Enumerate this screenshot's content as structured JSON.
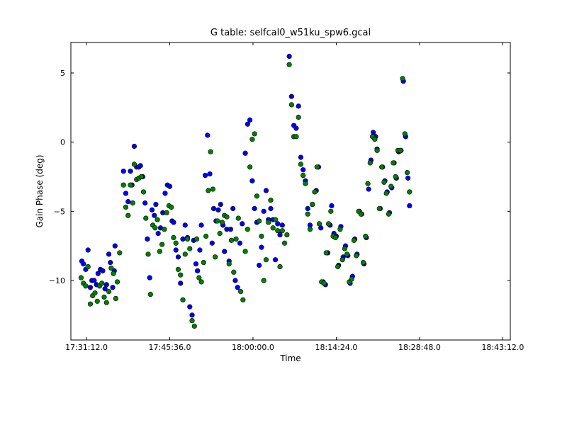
{
  "chart_data": {
    "type": "scatter",
    "title": "G table: selfcal0_w51ku_spw6.gcal",
    "xlabel": "Time",
    "ylabel": "Gain Phase (deg)",
    "xlim": [
      "17:28:30",
      "18:44:30"
    ],
    "ylim": [
      -14.3,
      7.2
    ],
    "x_ticks": [
      "17:31:12.0",
      "17:45:36.0",
      "18:00:00.0",
      "18:14:24.0",
      "18:28:48.0",
      "18:43:12.0"
    ],
    "y_ticks": [
      5,
      0,
      -5,
      -10
    ],
    "grid": false,
    "series": [
      {
        "color": "#0000ff",
        "points": [
          [
            "17:30:24",
            -8.6
          ],
          [
            "17:30:40",
            -8.8
          ],
          [
            "17:31:04",
            -9.2
          ],
          [
            "17:31:28",
            -7.8
          ],
          [
            "17:31:52",
            -10.5
          ],
          [
            "17:32:08",
            -10.0
          ],
          [
            "17:32:32",
            -10.0
          ],
          [
            "17:32:56",
            -10.3
          ],
          [
            "17:33:12",
            -9.5
          ],
          [
            "17:33:36",
            -9.2
          ],
          [
            "17:34:00",
            -9.3
          ],
          [
            "17:34:24",
            -10.6
          ],
          [
            "17:34:40",
            -10.3
          ],
          [
            "17:35:04",
            -8.1
          ],
          [
            "17:35:20",
            -8.7
          ],
          [
            "17:35:44",
            -10.5
          ],
          [
            "17:36:00",
            -9.3
          ],
          [
            "17:36:08",
            -7.5
          ],
          [
            "17:37:36",
            -2.1
          ],
          [
            "17:38:00",
            -3.7
          ],
          [
            "17:38:24",
            -4.3
          ],
          [
            "17:38:48",
            -2.1
          ],
          [
            "17:39:04",
            -3.1
          ],
          [
            "17:39:28",
            -0.3
          ],
          [
            "17:39:52",
            -1.8
          ],
          [
            "17:40:16",
            -1.8
          ],
          [
            "17:40:32",
            -1.7
          ],
          [
            "17:40:56",
            -2.5
          ],
          [
            "17:41:20",
            -4.4
          ],
          [
            "17:41:44",
            -7.0
          ],
          [
            "17:42:08",
            -9.8
          ],
          [
            "17:42:32",
            -4.9
          ],
          [
            "17:42:56",
            -5.3
          ],
          [
            "17:43:12",
            -4.5
          ],
          [
            "17:43:36",
            -6.6
          ],
          [
            "17:44:00",
            -6.2
          ],
          [
            "17:44:24",
            -5.1
          ],
          [
            "17:44:48",
            -3.7
          ],
          [
            "17:45:12",
            -3.1
          ],
          [
            "17:45:36",
            -3.2
          ],
          [
            "17:46:00",
            -5.7
          ],
          [
            "17:46:16",
            -5.8
          ],
          [
            "17:46:40",
            -7.8
          ],
          [
            "17:47:04",
            -8.3
          ],
          [
            "17:47:28",
            -10.2
          ],
          [
            "17:47:52",
            -7.0
          ],
          [
            "17:48:16",
            -6.0
          ],
          [
            "17:48:40",
            -6.9
          ],
          [
            "17:49:04",
            -11.9
          ],
          [
            "17:49:28",
            -12.5
          ],
          [
            "17:49:44",
            -7.1
          ],
          [
            "17:50:08",
            -8.8
          ],
          [
            "17:50:24",
            -9.3
          ],
          [
            "17:50:48",
            -7.8
          ],
          [
            "17:51:04",
            -6.0
          ],
          [
            "17:51:44",
            -2.4
          ],
          [
            "17:52:08",
            0.5
          ],
          [
            "17:52:32",
            -2.3
          ],
          [
            "17:52:56",
            -7.3
          ],
          [
            "17:53:12",
            -4.8
          ],
          [
            "17:53:36",
            -5.7
          ],
          [
            "17:54:00",
            -4.9
          ],
          [
            "17:54:24",
            -4.5
          ],
          [
            "17:54:48",
            -6.0
          ],
          [
            "17:55:04",
            -7.9
          ],
          [
            "17:55:28",
            -6.3
          ],
          [
            "17:55:52",
            -8.6
          ],
          [
            "17:56:08",
            -6.3
          ],
          [
            "17:56:32",
            -4.8
          ],
          [
            "17:56:56",
            -10.0
          ],
          [
            "17:57:20",
            -10.5
          ],
          [
            "17:57:44",
            -7.3
          ],
          [
            "17:58:08",
            -5.9
          ],
          [
            "17:58:40",
            -0.8
          ],
          [
            "17:59:04",
            1.3
          ],
          [
            "17:59:28",
            1.6
          ],
          [
            "17:59:52",
            -2.8
          ],
          [
            "18:00:16",
            -4.8
          ],
          [
            "18:00:40",
            -5.8
          ],
          [
            "18:01:04",
            -8.9
          ],
          [
            "18:01:28",
            -7.6
          ],
          [
            "18:01:52",
            -5.0
          ],
          [
            "18:02:16",
            -3.5
          ],
          [
            "18:02:40",
            -5.6
          ],
          [
            "18:03:04",
            -4.8
          ],
          [
            "18:03:28",
            -5.6
          ],
          [
            "18:03:52",
            -8.5
          ],
          [
            "18:04:16",
            -5.9
          ],
          [
            "18:04:40",
            -6.7
          ],
          [
            "18:05:04",
            -6.0
          ],
          [
            "18:06:16",
            6.2
          ],
          [
            "18:06:40",
            3.3
          ],
          [
            "18:07:04",
            1.2
          ],
          [
            "18:07:28",
            1.0
          ],
          [
            "18:07:52",
            2.6
          ],
          [
            "18:08:16",
            -1.1
          ],
          [
            "18:08:40",
            -2.0
          ],
          [
            "18:09:04",
            -2.8
          ],
          [
            "18:09:28",
            -4.8
          ],
          [
            "18:09:52",
            -6.0
          ],
          [
            "18:10:16",
            -4.5
          ],
          [
            "18:10:56",
            -3.5
          ],
          [
            "18:11:20",
            -1.8
          ],
          [
            "18:11:44",
            -6.2
          ],
          [
            "18:12:08",
            -10.1
          ],
          [
            "18:12:32",
            -10.3
          ],
          [
            "18:12:56",
            -8.0
          ],
          [
            "18:13:20",
            -6.0
          ],
          [
            "18:13:36",
            -4.6
          ],
          [
            "18:14:00",
            -6.6
          ],
          [
            "18:14:24",
            -6.8
          ],
          [
            "18:14:48",
            -8.9
          ],
          [
            "18:15:12",
            -6.1
          ],
          [
            "18:15:36",
            -8.3
          ],
          [
            "18:16:00",
            -7.5
          ],
          [
            "18:16:24",
            -8.2
          ],
          [
            "18:16:48",
            -10.2
          ],
          [
            "18:17:12",
            -9.7
          ],
          [
            "18:17:36",
            -7.0
          ],
          [
            "18:18:00",
            -8.1
          ],
          [
            "18:18:24",
            -5.0
          ],
          [
            "18:18:48",
            -5.2
          ],
          [
            "18:19:12",
            -8.8
          ],
          [
            "18:19:36",
            -6.9
          ],
          [
            "18:20:00",
            -3.4
          ],
          [
            "18:20:24",
            -1.3
          ],
          [
            "18:20:48",
            0.7
          ],
          [
            "18:21:12",
            0.4
          ],
          [
            "18:21:28",
            -0.5
          ],
          [
            "18:22:00",
            -4.8
          ],
          [
            "18:22:24",
            -1.8
          ],
          [
            "18:22:48",
            -2.8
          ],
          [
            "18:23:12",
            -3.6
          ],
          [
            "18:23:36",
            -5.1
          ],
          [
            "18:24:00",
            -3.3
          ],
          [
            "18:24:24",
            -1.5
          ],
          [
            "18:24:48",
            -2.6
          ],
          [
            "18:25:12",
            -0.7
          ],
          [
            "18:25:36",
            -0.6
          ],
          [
            "18:26:00",
            4.4
          ],
          [
            "18:26:24",
            0.4
          ],
          [
            "18:26:48",
            -2.6
          ],
          [
            "18:27:04",
            -4.6
          ]
        ]
      },
      {
        "color": "#008000",
        "points": [
          [
            "17:30:16",
            -9.8
          ],
          [
            "17:30:40",
            -10.2
          ],
          [
            "17:31:04",
            -10.4
          ],
          [
            "17:31:28",
            -9.0
          ],
          [
            "17:31:52",
            -11.7
          ],
          [
            "17:32:16",
            -11.1
          ],
          [
            "17:32:40",
            -10.9
          ],
          [
            "17:33:04",
            -11.5
          ],
          [
            "17:33:28",
            -10.4
          ],
          [
            "17:33:52",
            -10.2
          ],
          [
            "17:34:16",
            -11.2
          ],
          [
            "17:34:40",
            -11.6
          ],
          [
            "17:35:04",
            -10.8
          ],
          [
            "17:35:28",
            -9.1
          ],
          [
            "17:35:52",
            -9.5
          ],
          [
            "17:36:16",
            -11.3
          ],
          [
            "17:36:32",
            -10.1
          ],
          [
            "17:36:56",
            -8.0
          ],
          [
            "17:37:36",
            -3.1
          ],
          [
            "17:38:00",
            -4.7
          ],
          [
            "17:38:24",
            -5.3
          ],
          [
            "17:38:48",
            -3.1
          ],
          [
            "17:39:12",
            -4.4
          ],
          [
            "17:39:28",
            -1.6
          ],
          [
            "17:39:52",
            -2.7
          ],
          [
            "17:40:16",
            -2.6
          ],
          [
            "17:40:40",
            -2.5
          ],
          [
            "17:41:04",
            -3.6
          ],
          [
            "17:41:28",
            -5.5
          ],
          [
            "17:41:52",
            -8.1
          ],
          [
            "17:42:16",
            -11.0
          ],
          [
            "17:42:40",
            -6.0
          ],
          [
            "17:43:04",
            -6.2
          ],
          [
            "17:43:28",
            -5.6
          ],
          [
            "17:43:52",
            -7.9
          ],
          [
            "17:44:16",
            -7.4
          ],
          [
            "17:44:40",
            -6.3
          ],
          [
            "17:45:04",
            -5.1
          ],
          [
            "17:45:28",
            -4.6
          ],
          [
            "17:45:52",
            -4.7
          ],
          [
            "17:46:16",
            -6.9
          ],
          [
            "17:46:40",
            -7.3
          ],
          [
            "17:47:04",
            -9.2
          ],
          [
            "17:47:28",
            -9.6
          ],
          [
            "17:47:52",
            -11.4
          ],
          [
            "17:48:16",
            -8.1
          ],
          [
            "17:48:40",
            -7.0
          ],
          [
            "17:49:04",
            -7.7
          ],
          [
            "17:49:28",
            -12.9
          ],
          [
            "17:49:52",
            -13.3
          ],
          [
            "17:50:16",
            -7.0
          ],
          [
            "17:50:40",
            -9.8
          ],
          [
            "17:51:04",
            -10.1
          ],
          [
            "17:51:28",
            -8.7
          ],
          [
            "17:51:52",
            -6.8
          ],
          [
            "17:52:16",
            -3.5
          ],
          [
            "17:52:40",
            -0.7
          ],
          [
            "17:53:04",
            -3.4
          ],
          [
            "17:53:28",
            -8.3
          ],
          [
            "17:53:52",
            -5.7
          ],
          [
            "17:54:16",
            -6.6
          ],
          [
            "17:54:40",
            -5.8
          ],
          [
            "17:55:04",
            -5.3
          ],
          [
            "17:55:28",
            -5.4
          ],
          [
            "17:55:52",
            -8.8
          ],
          [
            "17:56:16",
            -7.1
          ],
          [
            "17:56:40",
            -9.4
          ],
          [
            "17:57:04",
            -7.0
          ],
          [
            "17:57:28",
            -5.5
          ],
          [
            "17:57:52",
            -10.8
          ],
          [
            "17:58:16",
            -11.4
          ],
          [
            "17:58:40",
            -7.9
          ],
          [
            "17:59:04",
            -6.3
          ],
          [
            "17:59:28",
            -1.8
          ],
          [
            "17:59:52",
            0.2
          ],
          [
            "18:00:16",
            0.6
          ],
          [
            "18:00:40",
            -3.9
          ],
          [
            "18:01:04",
            -5.7
          ],
          [
            "18:01:28",
            -6.8
          ],
          [
            "18:01:52",
            -10.0
          ],
          [
            "18:02:16",
            -8.5
          ],
          [
            "18:02:40",
            -5.8
          ],
          [
            "18:03:04",
            -4.2
          ],
          [
            "18:03:28",
            -6.2
          ],
          [
            "18:03:52",
            -5.6
          ],
          [
            "18:04:16",
            -6.4
          ],
          [
            "18:04:40",
            -9.0
          ],
          [
            "18:05:04",
            -6.4
          ],
          [
            "18:05:28",
            -7.3
          ],
          [
            "18:05:52",
            -6.7
          ],
          [
            "18:06:16",
            5.6
          ],
          [
            "18:06:40",
            2.7
          ],
          [
            "18:07:04",
            0.4
          ],
          [
            "18:07:28",
            0.4
          ],
          [
            "18:07:52",
            1.8
          ],
          [
            "18:08:16",
            -1.6
          ],
          [
            "18:08:40",
            -2.4
          ],
          [
            "18:09:04",
            -3.0
          ],
          [
            "18:09:28",
            -5.2
          ],
          [
            "18:09:52",
            -6.3
          ],
          [
            "18:10:16",
            -4.5
          ],
          [
            "18:10:40",
            -3.6
          ],
          [
            "18:11:04",
            -1.8
          ],
          [
            "18:11:28",
            -5.9
          ],
          [
            "18:11:52",
            -10.1
          ],
          [
            "18:12:16",
            -10.2
          ],
          [
            "18:12:40",
            -8.0
          ],
          [
            "18:13:04",
            -5.9
          ],
          [
            "18:13:28",
            -5.0
          ],
          [
            "18:13:52",
            -6.8
          ],
          [
            "18:14:16",
            -6.9
          ],
          [
            "18:14:40",
            -9.0
          ],
          [
            "18:15:04",
            -6.3
          ],
          [
            "18:15:28",
            -8.5
          ],
          [
            "18:15:52",
            -7.7
          ],
          [
            "18:16:16",
            -8.1
          ],
          [
            "18:16:40",
            -10.1
          ],
          [
            "18:17:04",
            -9.9
          ],
          [
            "18:17:28",
            -7.1
          ],
          [
            "18:17:52",
            -8.2
          ],
          [
            "18:18:16",
            -5.0
          ],
          [
            "18:18:40",
            -5.2
          ],
          [
            "18:19:04",
            -8.7
          ],
          [
            "18:19:28",
            -6.8
          ],
          [
            "18:19:52",
            -3.0
          ],
          [
            "18:20:16",
            -1.5
          ],
          [
            "18:20:40",
            0.4
          ],
          [
            "18:21:04",
            0.2
          ],
          [
            "18:21:28",
            -0.6
          ],
          [
            "18:21:52",
            -4.8
          ],
          [
            "18:22:16",
            -1.8
          ],
          [
            "18:22:40",
            -2.9
          ],
          [
            "18:23:04",
            -3.7
          ],
          [
            "18:23:28",
            -5.2
          ],
          [
            "18:23:52",
            -3.2
          ],
          [
            "18:24:16",
            -1.5
          ],
          [
            "18:24:40",
            -2.5
          ],
          [
            "18:25:04",
            -0.6
          ],
          [
            "18:25:28",
            -0.6
          ],
          [
            "18:25:52",
            4.6
          ],
          [
            "18:26:16",
            0.6
          ],
          [
            "18:26:40",
            -2.2
          ],
          [
            "18:27:04",
            -3.6
          ]
        ]
      }
    ]
  }
}
